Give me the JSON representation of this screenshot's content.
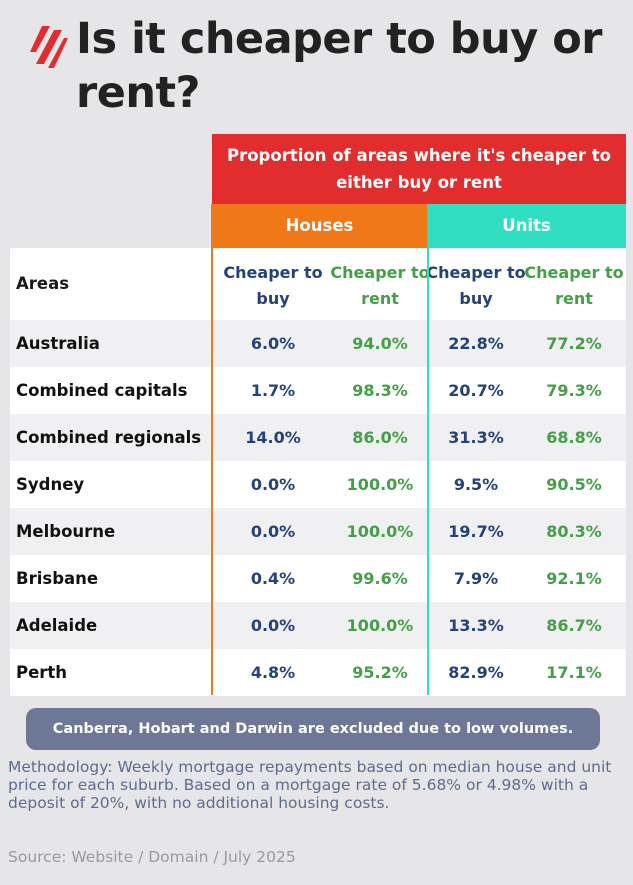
{
  "title": "Is it cheaper to buy or rent?",
  "logo_icon": "sbs-slash-logo",
  "header": "Proportion of areas where it's cheaper to either buy or rent",
  "groups": {
    "houses": "Houses",
    "units": "Units"
  },
  "columns": {
    "areas": "Areas",
    "buy": "Cheaper to buy",
    "rent": "Cheaper to rent"
  },
  "rows": [
    {
      "area": "Australia",
      "houses_buy": "6.0%",
      "houses_rent": "94.0%",
      "units_buy": "22.8%",
      "units_rent": "77.2%"
    },
    {
      "area": "Combined capitals",
      "houses_buy": "1.7%",
      "houses_rent": "98.3%",
      "units_buy": "20.7%",
      "units_rent": "79.3%"
    },
    {
      "area": "Combined regionals",
      "houses_buy": "14.0%",
      "houses_rent": "86.0%",
      "units_buy": "31.3%",
      "units_rent": "68.8%"
    },
    {
      "area": "Sydney",
      "houses_buy": "0.0%",
      "houses_rent": "100.0%",
      "units_buy": "9.5%",
      "units_rent": "90.5%"
    },
    {
      "area": "Melbourne",
      "houses_buy": "0.0%",
      "houses_rent": "100.0%",
      "units_buy": "19.7%",
      "units_rent": "80.3%"
    },
    {
      "area": "Brisbane",
      "houses_buy": "0.4%",
      "houses_rent": "99.6%",
      "units_buy": "7.9%",
      "units_rent": "92.1%"
    },
    {
      "area": "Adelaide",
      "houses_buy": "0.0%",
      "houses_rent": "100.0%",
      "units_buy": "13.3%",
      "units_rent": "86.7%"
    },
    {
      "area": "Perth",
      "houses_buy": "4.8%",
      "houses_rent": "95.2%",
      "units_buy": "82.9%",
      "units_rent": "17.1%"
    }
  ],
  "note": "Canberra, Hobart and Darwin are excluded due to low volumes.",
  "methodology": "Methodology: Weekly mortgage repayments based on median house and unit price for each suburb. Based on a mortgage rate of 5.68% or 4.98% with a deposit of 20%, with no additional housing costs.",
  "source": "Source: Website / Domain / July 2025",
  "colors": {
    "red": "#e12d2d",
    "orange": "#f07818",
    "teal": "#30dfc2",
    "blue_text": "#23427a",
    "green_text": "#43a047",
    "note_bg": "#6c7896"
  }
}
